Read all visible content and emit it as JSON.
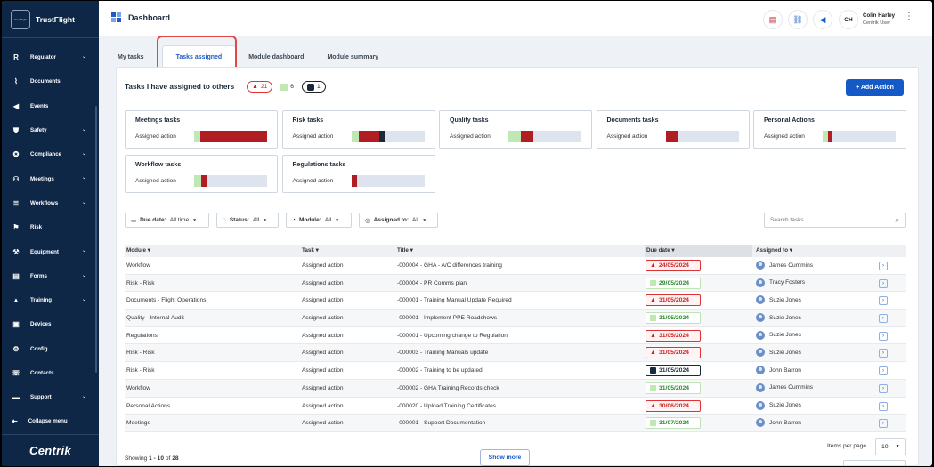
{
  "sidebar": {
    "brand": "TrustFlight",
    "brand_logo_text": "TrustFlight",
    "items": [
      {
        "label": "Regulator",
        "icon": "R",
        "chevron": true
      },
      {
        "label": "Documents",
        "icon": "paperclip-icon",
        "chevron": false
      },
      {
        "label": "Events",
        "icon": "megaphone-icon",
        "chevron": false
      },
      {
        "label": "Safety",
        "icon": "shield-icon",
        "chevron": true
      },
      {
        "label": "Compliance",
        "icon": "badge-icon",
        "chevron": true
      },
      {
        "label": "Meetings",
        "icon": "people-icon",
        "chevron": true
      },
      {
        "label": "Workflows",
        "icon": "workflow-icon",
        "chevron": true
      },
      {
        "label": "Risk",
        "icon": "risk-icon",
        "chevron": false
      },
      {
        "label": "Equipment",
        "icon": "wrench-icon",
        "chevron": true
      },
      {
        "label": "Forms",
        "icon": "forms-icon",
        "chevron": true
      },
      {
        "label": "Training",
        "icon": "graduation-cap-icon",
        "chevron": true
      },
      {
        "label": "Devices",
        "icon": "devices-icon",
        "chevron": false
      },
      {
        "label": "Config",
        "icon": "config-icon",
        "chevron": false
      },
      {
        "label": "Contacts",
        "icon": "contacts-icon",
        "chevron": false
      },
      {
        "label": "Support",
        "icon": "support-icon",
        "chevron": true
      }
    ],
    "collapse_label": "Collapse menu",
    "footer_logo": "Centrik"
  },
  "topbar": {
    "title": "Dashboard",
    "icons": [
      "document-icon",
      "link-icon",
      "megaphone-icon"
    ],
    "user_initials": "CH",
    "user_name": "Colin Harley",
    "user_role": "Centrik User"
  },
  "tabs": [
    "My tasks",
    "Tasks assigned",
    "Module dashboard",
    "Module summary"
  ],
  "active_tab": "Tasks assigned",
  "panel": {
    "title": "Tasks I have assigned to others",
    "count_overdue": "21",
    "count_ok": "6",
    "count_other": "1",
    "add_button": "+ Add Action"
  },
  "cards": [
    {
      "title": "Meetings tasks",
      "sub": "Assigned action",
      "green": 8,
      "red": 92,
      "dark": 0
    },
    {
      "title": "Risk tasks",
      "sub": "Assigned action",
      "green": 10,
      "red": 28,
      "dark": 8
    },
    {
      "title": "Quality tasks",
      "sub": "Assigned action",
      "green": 17,
      "red": 17,
      "dark": 0
    },
    {
      "title": "Documents tasks",
      "sub": "Assigned action",
      "green": 0,
      "red": 17,
      "dark": 0
    },
    {
      "title": "Personal Actions",
      "sub": "Assigned action",
      "green": 7,
      "red": 7,
      "dark": 0
    },
    {
      "title": "Workflow tasks",
      "sub": "Assigned action",
      "green": 10,
      "red": 8,
      "dark": 0
    },
    {
      "title": "Regulations tasks",
      "sub": "Assigned action",
      "green": 0,
      "red": 8,
      "dark": 0
    }
  ],
  "filters": {
    "due_date": {
      "label": "Due date:",
      "value": "All time"
    },
    "status": {
      "label": "Status:",
      "value": "All"
    },
    "module": {
      "label": "Module:",
      "value": "All"
    },
    "assigned_to": {
      "label": "Assigned to:",
      "value": "All"
    },
    "search_placeholder": "Search tasks..."
  },
  "table": {
    "headers": {
      "module": "Module",
      "task": "Task",
      "title": "Title",
      "due": "Due date",
      "assigned": "Assigned to"
    },
    "rows": [
      {
        "module": "Workflow",
        "task": "Assigned action",
        "title": "-000004 - GHA - A/C differences training",
        "due": "24/05/2024",
        "status": "overdue",
        "assigned": "James Cummins"
      },
      {
        "module": "Risk - Risk",
        "task": "Assigned action",
        "title": "-000004 - PR Comms plan",
        "due": "29/05/2024",
        "status": "ok",
        "assigned": "Tracy Fosters"
      },
      {
        "module": "Documents - Flight Operations",
        "task": "Assigned action",
        "title": "-000001 - Training Manual Update Required",
        "due": "31/05/2024",
        "status": "overdue",
        "assigned": "Suzie Jones"
      },
      {
        "module": "Quality - Internal Audit",
        "task": "Assigned action",
        "title": "-000001 - Implement PPE Roadshows",
        "due": "31/05/2024",
        "status": "ok",
        "assigned": "Suzie Jones"
      },
      {
        "module": "Regulations",
        "task": "Assigned action",
        "title": "-000001 - Upcoming change to Regulation",
        "due": "31/05/2024",
        "status": "overdue",
        "assigned": "Suzie Jones"
      },
      {
        "module": "Risk - Risk",
        "task": "Assigned action",
        "title": "-000003 - Training Manuals update",
        "due": "31/05/2024",
        "status": "overdue",
        "assigned": "Suzie Jones"
      },
      {
        "module": "Risk - Risk",
        "task": "Assigned action",
        "title": "-000002 - Training to be updated",
        "due": "31/05/2024",
        "status": "other",
        "assigned": "John Barron"
      },
      {
        "module": "Workflow",
        "task": "Assigned action",
        "title": "-000002 - GHA Training Records check",
        "due": "31/05/2024",
        "status": "ok",
        "assigned": "James Cummins"
      },
      {
        "module": "Personal Actions",
        "task": "Assigned action",
        "title": "-000020 - Upload Training Certificates",
        "due": "30/06/2024",
        "status": "overdue",
        "assigned": "Suzie Jones"
      },
      {
        "module": "Meetings",
        "task": "Assigned action",
        "title": "-000001 - Support Documentation",
        "due": "31/07/2024",
        "status": "ok",
        "assigned": "John Barron"
      }
    ]
  },
  "footer": {
    "showing_prefix": "Showing",
    "showing_range": "1 - 10",
    "showing_of": "of",
    "showing_total": "28",
    "show_more": "Show more",
    "items_per_page_label": "Items per page",
    "items_per_page_value": "10"
  }
}
